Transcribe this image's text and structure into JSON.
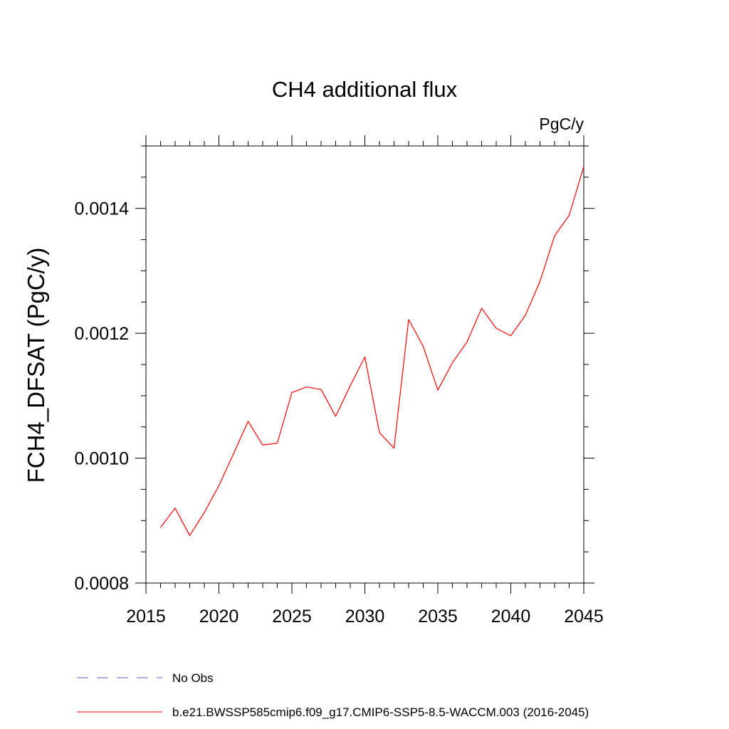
{
  "chart_data": {
    "type": "line",
    "title": "CH4 additional flux",
    "units_label": "PgC/y",
    "xlabel": "",
    "ylabel": "FCH4_DFSAT  (PgC/y)",
    "xlim": [
      2015,
      2045
    ],
    "ylim": [
      0.0008,
      0.0015
    ],
    "x_ticks": [
      2015,
      2020,
      2025,
      2030,
      2035,
      2040,
      2045
    ],
    "x_tick_labels": [
      "2015",
      "2020",
      "2025",
      "2030",
      "2035",
      "2040",
      "2045"
    ],
    "x_minor_step": 1,
    "y_ticks": [
      0.0008,
      0.001,
      0.0012,
      0.0014
    ],
    "y_tick_labels": [
      "0.0008",
      "0.0010",
      "0.0012",
      "0.0014"
    ],
    "y_minor_step": 5e-05,
    "series": [
      {
        "name": "b.e21.BWSSP585cmip6.f09_g17.CMIP6-SSP5-8.5-WACCM.003 (2016-2045)",
        "color": "#ff0000",
        "style": "solid",
        "x": [
          2016,
          2017,
          2018,
          2019,
          2020,
          2021,
          2022,
          2023,
          2024,
          2025,
          2026,
          2027,
          2028,
          2029,
          2030,
          2031,
          2032,
          2033,
          2034,
          2035,
          2036,
          2037,
          2038,
          2039,
          2040,
          2041,
          2042,
          2043,
          2044,
          2045
        ],
        "values": [
          0.000889,
          0.00092,
          0.000876,
          0.000913,
          0.000956,
          0.001007,
          0.001059,
          0.001021,
          0.001024,
          0.001105,
          0.001114,
          0.00111,
          0.001067,
          0.001116,
          0.001162,
          0.001041,
          0.001016,
          0.001222,
          0.001179,
          0.001109,
          0.001153,
          0.001186,
          0.00124,
          0.001208,
          0.001196,
          0.001229,
          0.001283,
          0.001356,
          0.001389,
          0.001467
        ]
      }
    ],
    "legend": [
      {
        "label": "No Obs",
        "color": "#6a5acd",
        "style": "dashed"
      },
      {
        "label": "b.e21.BWSSP585cmip6.f09_g17.CMIP6-SSP5-8.5-WACCM.003 (2016-2045)",
        "color": "#ff0000",
        "style": "solid"
      }
    ],
    "legend_position": "bottom-left",
    "grid": false
  }
}
